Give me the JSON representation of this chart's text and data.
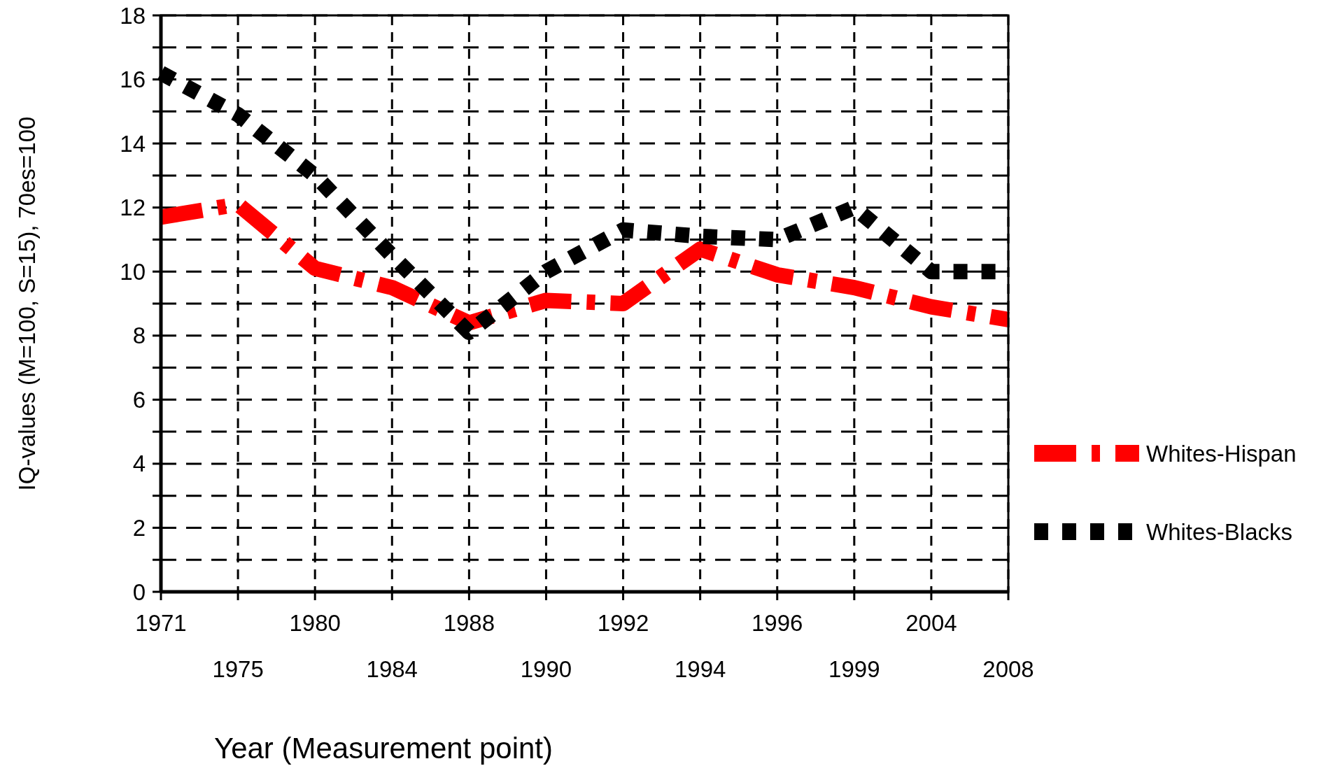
{
  "chart_data": {
    "type": "line",
    "xlabel": "Year (Measurement point)",
    "ylabel": "IQ-values (M=100, S=15), 70es=100",
    "categories": [
      "1971",
      "1975",
      "1980",
      "1984",
      "1988",
      "1990",
      "1992",
      "1994",
      "1996",
      "1999",
      "2004",
      "2008"
    ],
    "series": [
      {
        "name": "Whites-Hispan",
        "color": "#ff0000",
        "line_style": "dashed",
        "values": [
          11.7,
          12.1,
          10.1,
          9.5,
          8.4,
          9.1,
          9.0,
          10.7,
          9.9,
          9.5,
          8.9,
          8.5
        ]
      },
      {
        "name": "Whites-Blacks",
        "color": "#000000",
        "line_style": "dotted",
        "values": [
          16.2,
          14.9,
          13.0,
          10.5,
          8.1,
          10.0,
          11.3,
          11.1,
          11.0,
          12.0,
          10.0,
          10.0
        ]
      }
    ],
    "ylim": [
      0,
      18
    ],
    "yticks": [
      0,
      {
        "value": 1,
        "label": null
      },
      2,
      {
        "value": 3,
        "label": null
      },
      4,
      {
        "value": 5,
        "label": null
      },
      6,
      {
        "value": 7,
        "label": null
      },
      8,
      {
        "value": 9,
        "label": null
      },
      10,
      {
        "value": 11,
        "label": null
      },
      12,
      {
        "value": 13,
        "label": null
      },
      14,
      {
        "value": 15,
        "label": null
      },
      16,
      {
        "value": 17,
        "label": null
      },
      18
    ],
    "grid": true,
    "legend": "right",
    "marker": "none"
  }
}
